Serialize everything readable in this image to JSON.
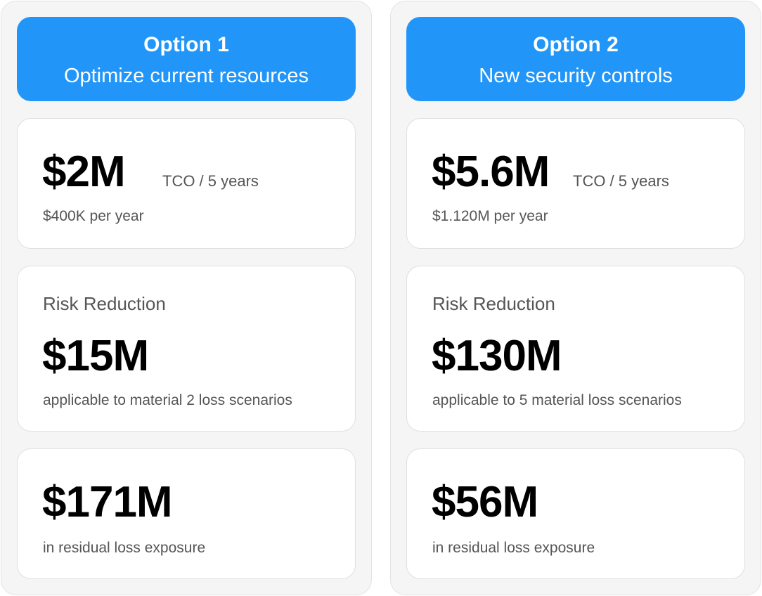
{
  "options": [
    {
      "name": "Option 1",
      "description": "Optimize current resources",
      "tco_value": "$2M",
      "tco_label": "TCO / 5 years",
      "per_year": "$400K per year",
      "risk_label": "Risk Reduction",
      "risk_value": "$15M",
      "risk_note": "applicable to material 2 loss scenarios",
      "residual_value": "$171M",
      "residual_note": "in residual loss exposure"
    },
    {
      "name": "Option 2",
      "description": "New security controls",
      "tco_value": "$5.6M",
      "tco_label": "TCO / 5 years",
      "per_year": "$1.120M per year",
      "risk_label": "Risk Reduction",
      "risk_value": "$130M",
      "risk_note": "applicable to 5 material loss scenarios",
      "residual_value": "$56M",
      "residual_note": "in residual loss exposure"
    }
  ],
  "colors": {
    "header_bg": "#2196f8",
    "panel_bg": "#f5f5f5",
    "card_bg": "#ffffff"
  }
}
